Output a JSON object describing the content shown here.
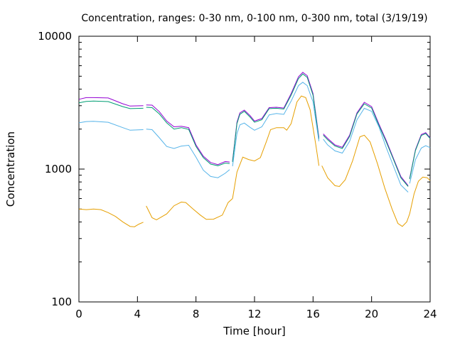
{
  "chart_data": {
    "type": "line",
    "title": "Concentration, ranges: 0-30 nm, 0-100 nm, 0-300 nm, total (3/19/19)",
    "xlabel": "Time [hour]",
    "ylabel": "Concentration",
    "xlim": [
      0,
      24
    ],
    "ylim": [
      100,
      10000
    ],
    "yscale": "log",
    "grid": false,
    "legend": "none",
    "x_ticks": [
      0,
      4,
      8,
      12,
      16,
      20,
      24
    ],
    "y_ticks": [
      100,
      1000,
      10000
    ],
    "series": [
      {
        "color": "#9400d3",
        "segments": [
          [
            [
              0,
              3350
            ],
            [
              0.5,
              3450
            ],
            [
              1,
              3450
            ],
            [
              2,
              3430
            ],
            [
              3,
              3100
            ],
            [
              3.5,
              2980
            ],
            [
              4.4,
              3000
            ]
          ],
          [
            [
              4.6,
              3040
            ],
            [
              5,
              3030
            ],
            [
              5.5,
              2700
            ],
            [
              6,
              2300
            ],
            [
              6.5,
              2080
            ],
            [
              7,
              2100
            ],
            [
              7.5,
              2050
            ],
            [
              8,
              1520
            ],
            [
              8.5,
              1250
            ],
            [
              9,
              1120
            ],
            [
              9.5,
              1080
            ],
            [
              10,
              1140
            ],
            [
              10.3,
              1130
            ]
          ],
          [
            [
              10.5,
              1150
            ],
            [
              10.8,
              2250
            ],
            [
              11,
              2650
            ],
            [
              11.3,
              2780
            ],
            [
              11.7,
              2520
            ],
            [
              12,
              2300
            ],
            [
              12.5,
              2400
            ],
            [
              13,
              2900
            ],
            [
              13.5,
              2920
            ],
            [
              14,
              2880
            ],
            [
              14.5,
              3700
            ],
            [
              15,
              4950
            ],
            [
              15.3,
              5350
            ],
            [
              15.6,
              5050
            ],
            [
              16,
              3700
            ],
            [
              16.4,
              1720
            ]
          ],
          [
            [
              16.7,
              1840
            ],
            [
              17,
              1700
            ],
            [
              17.5,
              1520
            ],
            [
              18,
              1460
            ],
            [
              18.5,
              1800
            ],
            [
              19,
              2650
            ],
            [
              19.5,
              3180
            ],
            [
              20,
              2950
            ],
            [
              20.5,
              2180
            ],
            [
              21,
              1640
            ],
            [
              21.5,
              1200
            ],
            [
              22,
              880
            ],
            [
              22.5,
              750
            ]
          ],
          [
            [
              22.6,
              850
            ],
            [
              23,
              1400
            ],
            [
              23.4,
              1820
            ],
            [
              23.7,
              1880
            ],
            [
              24,
              1720
            ]
          ]
        ]
      },
      {
        "color": "#009e73",
        "segments": [
          [
            [
              0,
              3150
            ],
            [
              0.5,
              3230
            ],
            [
              1,
              3250
            ],
            [
              2,
              3220
            ],
            [
              3,
              2950
            ],
            [
              3.5,
              2850
            ],
            [
              4.4,
              2870
            ]
          ],
          [
            [
              4.6,
              2920
            ],
            [
              5,
              2900
            ],
            [
              5.5,
              2600
            ],
            [
              6,
              2230
            ],
            [
              6.5,
              2000
            ],
            [
              7,
              2050
            ],
            [
              7.5,
              1990
            ],
            [
              8,
              1480
            ],
            [
              8.5,
              1220
            ],
            [
              9,
              1090
            ],
            [
              9.5,
              1060
            ],
            [
              10,
              1110
            ],
            [
              10.3,
              1100
            ]
          ],
          [
            [
              10.5,
              1130
            ],
            [
              10.8,
              2200
            ],
            [
              11,
              2580
            ],
            [
              11.3,
              2720
            ],
            [
              11.7,
              2460
            ],
            [
              12,
              2250
            ],
            [
              12.5,
              2350
            ],
            [
              13,
              2850
            ],
            [
              13.5,
              2870
            ],
            [
              14,
              2830
            ],
            [
              14.5,
              3600
            ],
            [
              15,
              4800
            ],
            [
              15.3,
              5200
            ],
            [
              15.6,
              4900
            ],
            [
              16,
              3600
            ],
            [
              16.4,
              1680
            ]
          ],
          [
            [
              16.7,
              1800
            ],
            [
              17,
              1660
            ],
            [
              17.5,
              1490
            ],
            [
              18,
              1430
            ],
            [
              18.5,
              1760
            ],
            [
              19,
              2600
            ],
            [
              19.5,
              3100
            ],
            [
              20,
              2880
            ],
            [
              20.5,
              2130
            ],
            [
              21,
              1600
            ],
            [
              21.5,
              1180
            ],
            [
              22,
              860
            ],
            [
              22.5,
              740
            ]
          ],
          [
            [
              22.6,
              840
            ],
            [
              23,
              1380
            ],
            [
              23.4,
              1790
            ],
            [
              23.7,
              1850
            ],
            [
              24,
              1700
            ]
          ]
        ]
      },
      {
        "color": "#56b4e9",
        "segments": [
          [
            [
              0,
              2230
            ],
            [
              0.5,
              2280
            ],
            [
              1,
              2290
            ],
            [
              2,
              2250
            ],
            [
              3,
              2050
            ],
            [
              3.5,
              1960
            ],
            [
              4.4,
              1980
            ]
          ],
          [
            [
              4.6,
              2000
            ],
            [
              5,
              1980
            ],
            [
              5.5,
              1720
            ],
            [
              6,
              1480
            ],
            [
              6.5,
              1430
            ],
            [
              7,
              1490
            ],
            [
              7.5,
              1510
            ],
            [
              8,
              1230
            ],
            [
              8.5,
              980
            ],
            [
              9,
              880
            ],
            [
              9.5,
              860
            ],
            [
              10,
              930
            ],
            [
              10.3,
              990
            ]
          ],
          [
            [
              10.5,
              1050
            ],
            [
              10.8,
              1850
            ],
            [
              11,
              2150
            ],
            [
              11.3,
              2220
            ],
            [
              11.7,
              2060
            ],
            [
              12,
              1960
            ],
            [
              12.5,
              2080
            ],
            [
              13,
              2560
            ],
            [
              13.5,
              2620
            ],
            [
              14,
              2580
            ],
            [
              14.5,
              3250
            ],
            [
              15,
              4250
            ],
            [
              15.3,
              4500
            ],
            [
              15.6,
              4250
            ],
            [
              16,
              3200
            ],
            [
              16.4,
              1620
            ]
          ],
          [
            [
              16.7,
              1680
            ],
            [
              17,
              1520
            ],
            [
              17.5,
              1370
            ],
            [
              18,
              1320
            ],
            [
              18.5,
              1620
            ],
            [
              19,
              2350
            ],
            [
              19.5,
              2870
            ],
            [
              20,
              2720
            ],
            [
              20.5,
              2080
            ],
            [
              21,
              1450
            ],
            [
              21.5,
              1050
            ],
            [
              22,
              760
            ],
            [
              22.5,
              670
            ]
          ],
          [
            [
              22.6,
              780
            ],
            [
              23,
              1180
            ],
            [
              23.4,
              1440
            ],
            [
              23.7,
              1500
            ],
            [
              24,
              1450
            ]
          ]
        ]
      },
      {
        "color": "#e69f00",
        "segments": [
          [
            [
              0,
              500
            ],
            [
              0.5,
              495
            ],
            [
              1,
              500
            ],
            [
              1.5,
              495
            ],
            [
              2,
              470
            ],
            [
              2.5,
              440
            ],
            [
              3,
              400
            ],
            [
              3.5,
              370
            ],
            [
              3.8,
              368
            ],
            [
              4.1,
              385
            ],
            [
              4.4,
              398
            ]
          ],
          [
            [
              4.6,
              528
            ],
            [
              5,
              430
            ],
            [
              5.3,
              415
            ],
            [
              6,
              460
            ],
            [
              6.5,
              530
            ],
            [
              7,
              565
            ],
            [
              7.3,
              560
            ],
            [
              7.8,
              500
            ],
            [
              8.3,
              450
            ],
            [
              8.7,
              418
            ],
            [
              9.2,
              420
            ],
            [
              9.8,
              450
            ],
            [
              10.2,
              560
            ],
            [
              10.5,
              600
            ]
          ],
          [
            [
              10.5,
              600
            ],
            [
              10.8,
              950
            ],
            [
              11.2,
              1230
            ],
            [
              11.6,
              1180
            ],
            [
              12,
              1150
            ],
            [
              12.4,
              1220
            ],
            [
              12.8,
              1600
            ],
            [
              13.1,
              1980
            ],
            [
              13.5,
              2050
            ],
            [
              14,
              2050
            ],
            [
              14.2,
              1960
            ],
            [
              14.5,
              2200
            ],
            [
              14.9,
              3200
            ],
            [
              15.2,
              3550
            ],
            [
              15.5,
              3450
            ],
            [
              15.8,
              2800
            ],
            [
              16.2,
              1500
            ],
            [
              16.4,
              1060
            ]
          ],
          [
            [
              16.6,
              1060
            ],
            [
              17,
              860
            ],
            [
              17.5,
              750
            ],
            [
              17.8,
              740
            ],
            [
              18.2,
              830
            ],
            [
              18.7,
              1150
            ],
            [
              19.2,
              1750
            ],
            [
              19.5,
              1800
            ],
            [
              19.9,
              1600
            ],
            [
              20.4,
              1100
            ],
            [
              20.9,
              720
            ],
            [
              21.4,
              500
            ],
            [
              21.8,
              390
            ],
            [
              22.1,
              370
            ],
            [
              22.4,
              400
            ],
            [
              22.6,
              460
            ]
          ],
          [
            [
              22.6,
              460
            ],
            [
              22.9,
              650
            ],
            [
              23.2,
              810
            ],
            [
              23.5,
              870
            ],
            [
              23.8,
              860
            ],
            [
              24,
              820
            ]
          ]
        ]
      }
    ]
  }
}
